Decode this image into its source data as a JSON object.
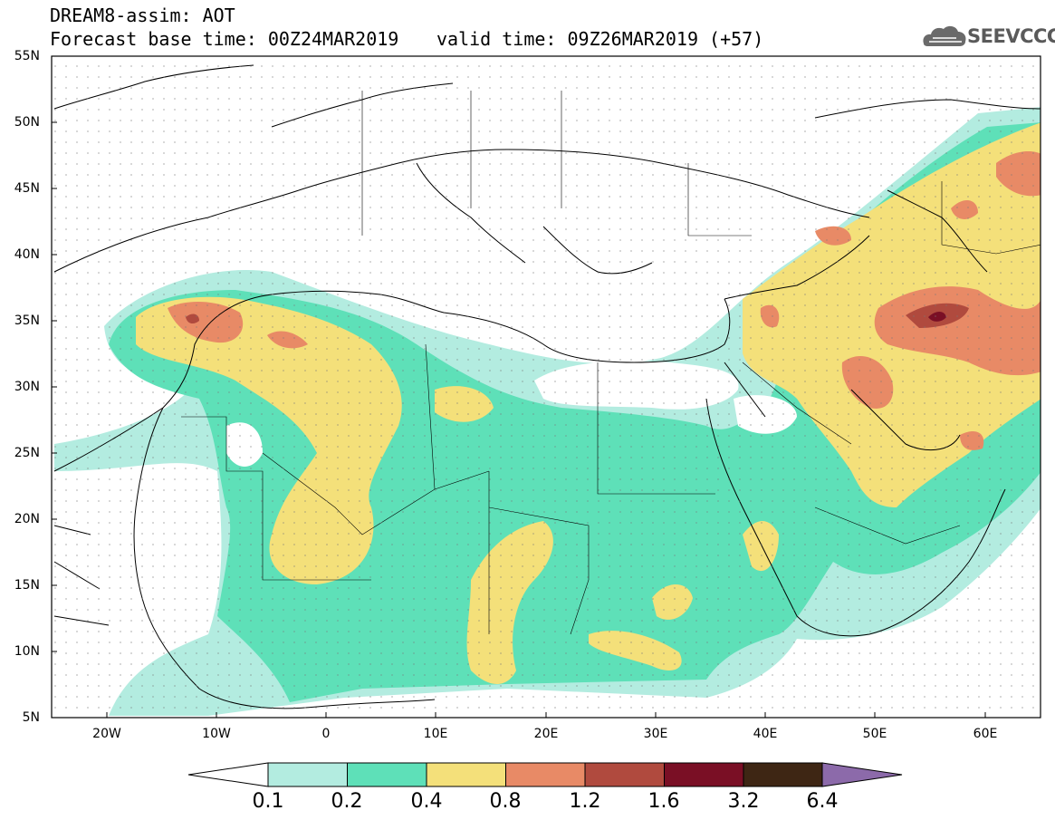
{
  "header": {
    "model_line": "DREAM8-assim: AOT",
    "base_line": "Forecast base time: 00Z24MAR2019",
    "valid_line": "valid time: 09Z26MAR2019 (+57)",
    "logo_text": "SEEVCCC",
    "logo_icon": "cloud-logo-icon"
  },
  "map": {
    "lat_labels": [
      "55N",
      "50N",
      "45N",
      "40N",
      "35N",
      "30N",
      "25N",
      "20N",
      "15N",
      "10N",
      "5N"
    ],
    "lon_labels": [
      "20W",
      "10W",
      "0",
      "10E",
      "20E",
      "30E",
      "40E",
      "50E",
      "60E"
    ],
    "extent": {
      "lon": [
        -25,
        65
      ],
      "lat": [
        5,
        55
      ]
    }
  },
  "legend": {
    "levels": [
      "0.1",
      "0.2",
      "0.4",
      "0.8",
      "1.2",
      "1.6",
      "3.2",
      "6.4"
    ],
    "colors": [
      "#b3ece0",
      "#5ee0b8",
      "#f4e07a",
      "#e88a66",
      "#b04a3e",
      "#7a0f25",
      "#3e2614",
      "#8c6aaa"
    ]
  }
}
